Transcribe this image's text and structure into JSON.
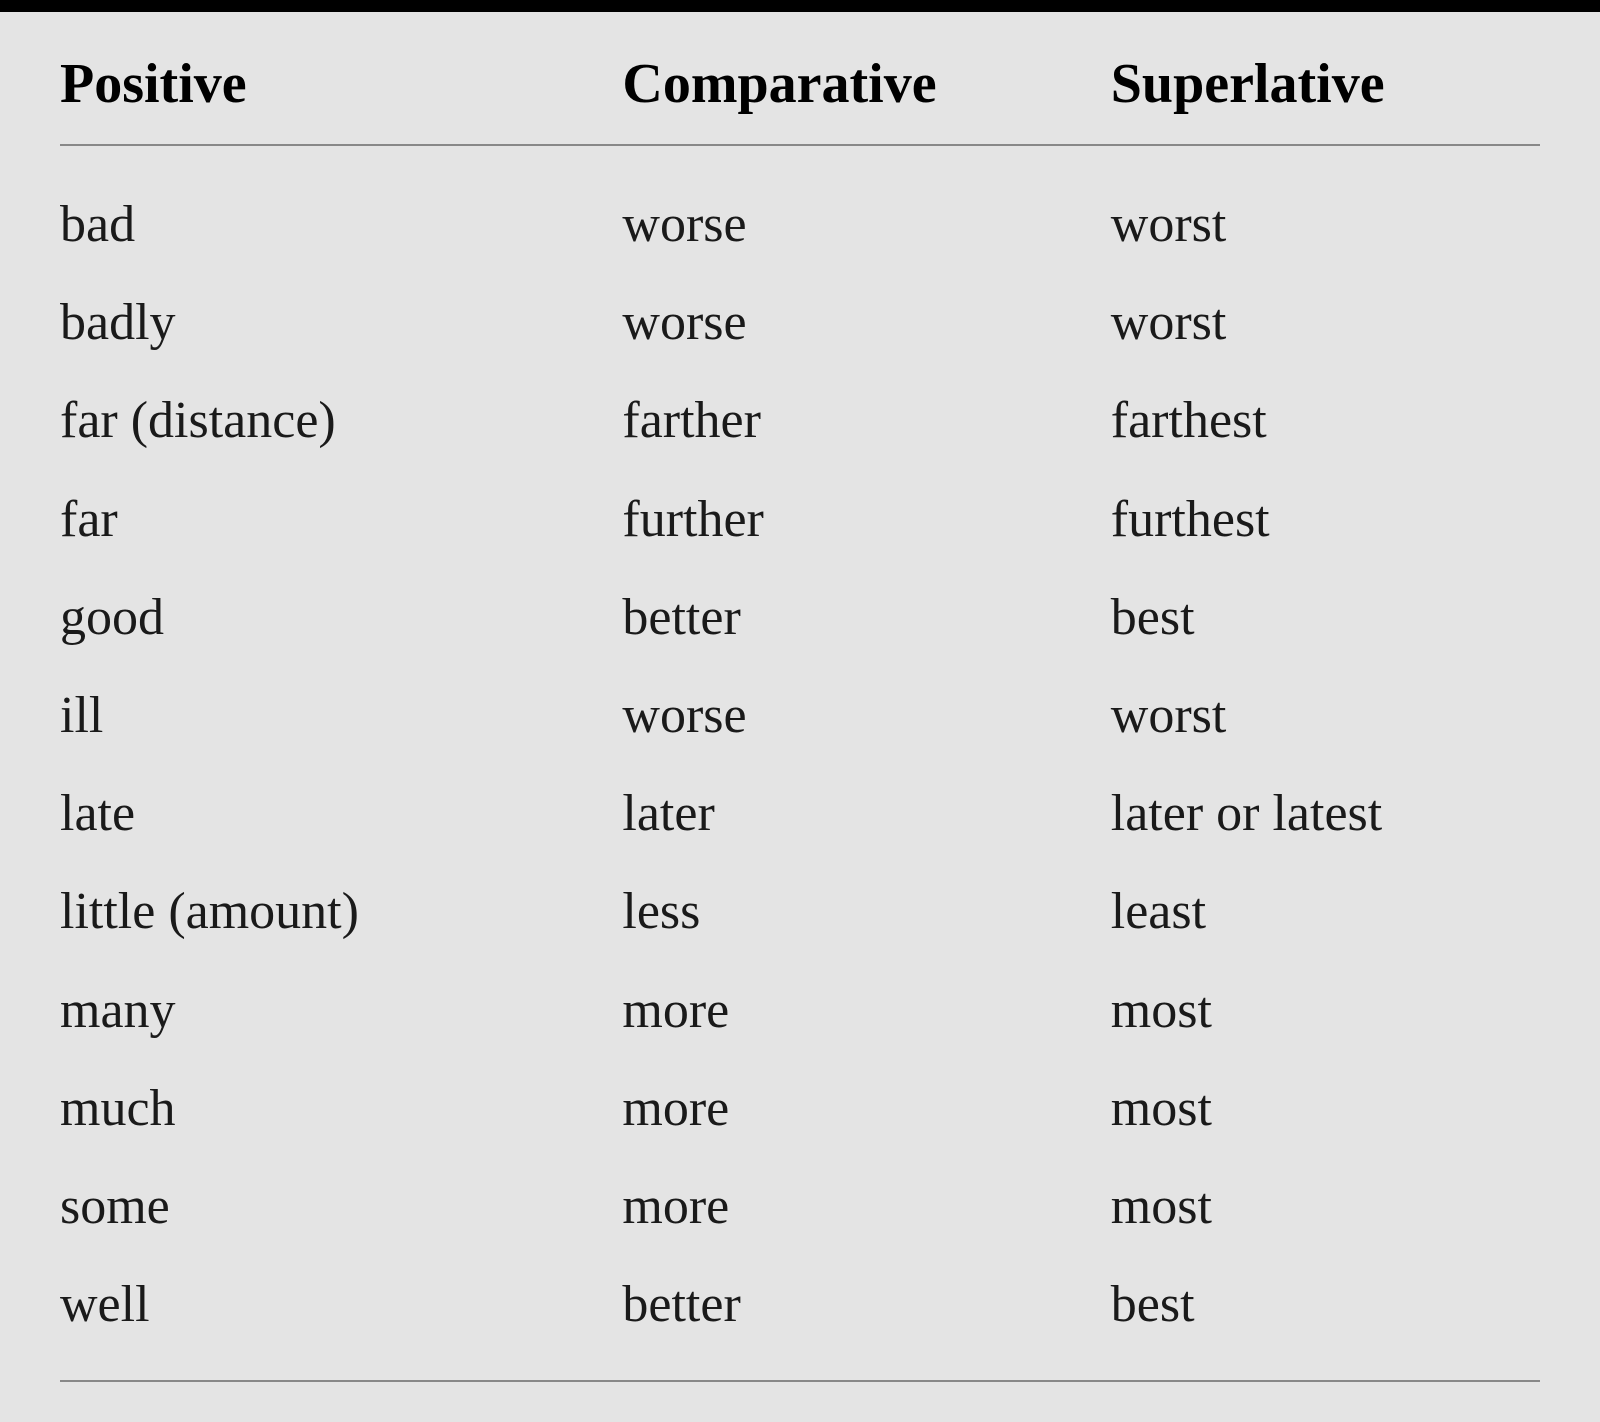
{
  "table": {
    "type": "table",
    "background_color": "#e4e4e4",
    "top_border_color": "#000000",
    "top_border_width": 12,
    "divider_color": "#888888",
    "text_color": "#000000",
    "header_fontsize": 56,
    "cell_fontsize": 52,
    "font_family": "Georgia, Times New Roman, serif",
    "columns": [
      {
        "label": "Positive",
        "width_pct": 38
      },
      {
        "label": "Comparative",
        "width_pct": 33
      },
      {
        "label": "Superlative",
        "width_pct": 29
      }
    ],
    "rows": [
      {
        "positive": "bad",
        "comparative": "worse",
        "superlative": "worst"
      },
      {
        "positive": "badly",
        "comparative": "worse",
        "superlative": "worst"
      },
      {
        "positive": "far (distance)",
        "comparative": "farther",
        "superlative": "farthest"
      },
      {
        "positive": "far",
        "comparative": "further",
        "superlative": "furthest"
      },
      {
        "positive": "good",
        "comparative": "better",
        "superlative": "best"
      },
      {
        "positive": "ill",
        "comparative": "worse",
        "superlative": "worst"
      },
      {
        "positive": "late",
        "comparative": "later",
        "superlative": "later or latest"
      },
      {
        "positive": "little (amount)",
        "comparative": "less",
        "superlative": "least"
      },
      {
        "positive": "many",
        "comparative": "more",
        "superlative": "most"
      },
      {
        "positive": "much",
        "comparative": "more",
        "superlative": "most"
      },
      {
        "positive": "some",
        "comparative": "more",
        "superlative": "most"
      },
      {
        "positive": "well",
        "comparative": "better",
        "superlative": "best"
      }
    ]
  }
}
